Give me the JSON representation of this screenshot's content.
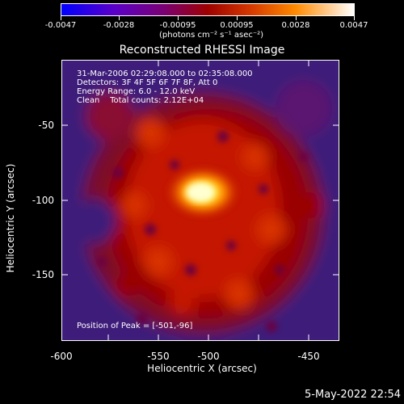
{
  "colorbar": {
    "tick_labels": [
      "-0.0047",
      "-0.0028",
      "-0.00095",
      "0.00095",
      "0.0028",
      "0.0047"
    ],
    "unit_label": "(photons cm⁻² s⁻¹ asec⁻²)"
  },
  "plot": {
    "title": "Reconstructed RHESSI Image",
    "annotation": {
      "time_range": "31-Mar-2006 02:29:08.000 to 02:35:08.000",
      "detectors": "Detectors: 3F 4F 5F 6F 7F 8F, Att 0",
      "energy_range": "Energy Range: 6.0 - 12.0 keV",
      "algorithm_counts": "Clean    Total counts: 2.12E+04"
    },
    "peak_label": "Position of Peak = [-501,-96]",
    "x_ticks": [
      "-600",
      "-550",
      "-500",
      "-450"
    ],
    "y_ticks": [
      "-50",
      "-100",
      "-150"
    ],
    "xlabel": "Heliocentric X (arcsec)",
    "ylabel": "Heliocentric Y (arcsec)"
  },
  "footer": {
    "timestamp": "5-May-2022 22:54"
  }
}
